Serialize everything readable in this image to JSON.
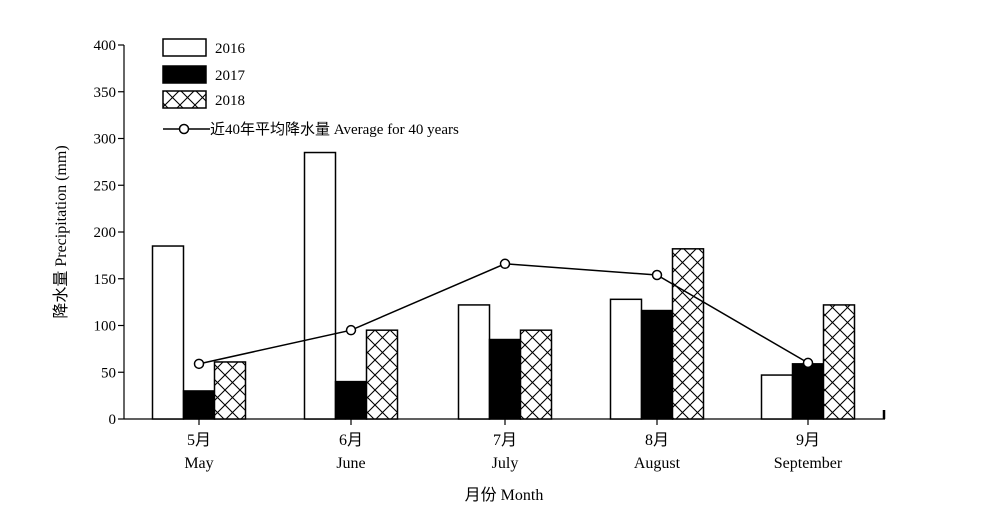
{
  "chart_data": {
    "type": "bar",
    "categories": [
      "5月",
      "6月",
      "7月",
      "8月",
      "9月"
    ],
    "category_subtitles": [
      "May",
      "June",
      "July",
      "August",
      "September"
    ],
    "series": [
      {
        "name": "2016",
        "values": [
          185,
          285,
          122,
          128,
          47
        ],
        "style": "hollow"
      },
      {
        "name": "2017",
        "values": [
          30,
          40,
          85,
          116,
          59
        ],
        "style": "solid"
      },
      {
        "name": "2018",
        "values": [
          61,
          95,
          95,
          182,
          122
        ],
        "style": "crosshatch"
      }
    ],
    "line_series": {
      "name": "近40年平均降水量 Average for 40 years",
      "values": [
        59,
        95,
        166,
        154,
        60
      ]
    },
    "xlabel": "月份 Month",
    "ylabel": "降水量 Precipitation (mm)",
    "ylim": [
      0,
      400
    ],
    "yticks": [
      0,
      50,
      100,
      150,
      200,
      250,
      300,
      350,
      400
    ],
    "grid": false,
    "legend_position": "top-left"
  }
}
